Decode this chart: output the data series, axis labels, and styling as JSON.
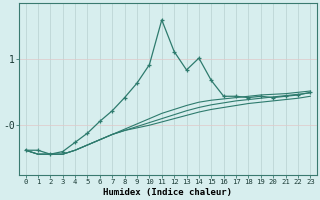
{
  "xlabel": "Humidex (Indice chaleur)",
  "background_color": "#d7eeee",
  "grid_color": "#b8d8d8",
  "line_color": "#2e7b6e",
  "xlim": [
    -0.5,
    23.5
  ],
  "ylim": [
    -0.75,
    1.85
  ],
  "ytick_positions": [
    -0.0,
    1.0
  ],
  "ytick_labels": [
    "-0",
    "1"
  ],
  "xticks": [
    0,
    1,
    2,
    3,
    4,
    5,
    6,
    7,
    8,
    9,
    10,
    11,
    12,
    13,
    14,
    15,
    16,
    17,
    18,
    19,
    20,
    21,
    22,
    23
  ],
  "line_peaked_x": [
    0,
    1,
    2,
    3,
    4,
    5,
    6,
    7,
    8,
    9,
    10,
    11,
    12,
    13,
    14,
    15,
    16,
    17,
    18,
    19,
    20,
    21,
    22,
    23
  ],
  "line_peaked_y": [
    -0.38,
    -0.38,
    -0.44,
    -0.4,
    -0.26,
    -0.12,
    0.06,
    0.22,
    0.42,
    0.64,
    0.92,
    1.6,
    1.12,
    0.84,
    1.02,
    0.68,
    0.44,
    0.44,
    0.42,
    0.44,
    0.42,
    0.44,
    0.46,
    0.5
  ],
  "line2_x": [
    0,
    1,
    2,
    3,
    4,
    5,
    6,
    7,
    8,
    9,
    10,
    11,
    12,
    13,
    14,
    15,
    16,
    17,
    18,
    19,
    20,
    21,
    22,
    23
  ],
  "line2_y": [
    -0.38,
    -0.44,
    -0.44,
    -0.44,
    -0.38,
    -0.3,
    -0.22,
    -0.14,
    -0.06,
    0.02,
    0.1,
    0.18,
    0.24,
    0.3,
    0.35,
    0.38,
    0.4,
    0.42,
    0.44,
    0.46,
    0.47,
    0.48,
    0.5,
    0.52
  ],
  "line3_x": [
    0,
    1,
    2,
    3,
    4,
    5,
    6,
    7,
    8,
    9,
    10,
    11,
    12,
    13,
    14,
    15,
    16,
    17,
    18,
    19,
    20,
    21,
    22,
    23
  ],
  "line3_y": [
    -0.38,
    -0.44,
    -0.44,
    -0.44,
    -0.38,
    -0.3,
    -0.22,
    -0.14,
    -0.08,
    -0.02,
    0.04,
    0.1,
    0.16,
    0.22,
    0.27,
    0.31,
    0.34,
    0.37,
    0.39,
    0.41,
    0.43,
    0.45,
    0.47,
    0.49
  ],
  "line4_x": [
    0,
    1,
    2,
    3,
    4,
    5,
    6,
    7,
    8,
    9,
    10,
    11,
    12,
    13,
    14,
    15,
    16,
    17,
    18,
    19,
    20,
    21,
    22,
    23
  ],
  "line4_y": [
    -0.38,
    -0.44,
    -0.44,
    -0.44,
    -0.38,
    -0.3,
    -0.22,
    -0.14,
    -0.08,
    -0.04,
    0.0,
    0.05,
    0.1,
    0.15,
    0.2,
    0.24,
    0.27,
    0.3,
    0.33,
    0.35,
    0.37,
    0.39,
    0.41,
    0.44
  ]
}
